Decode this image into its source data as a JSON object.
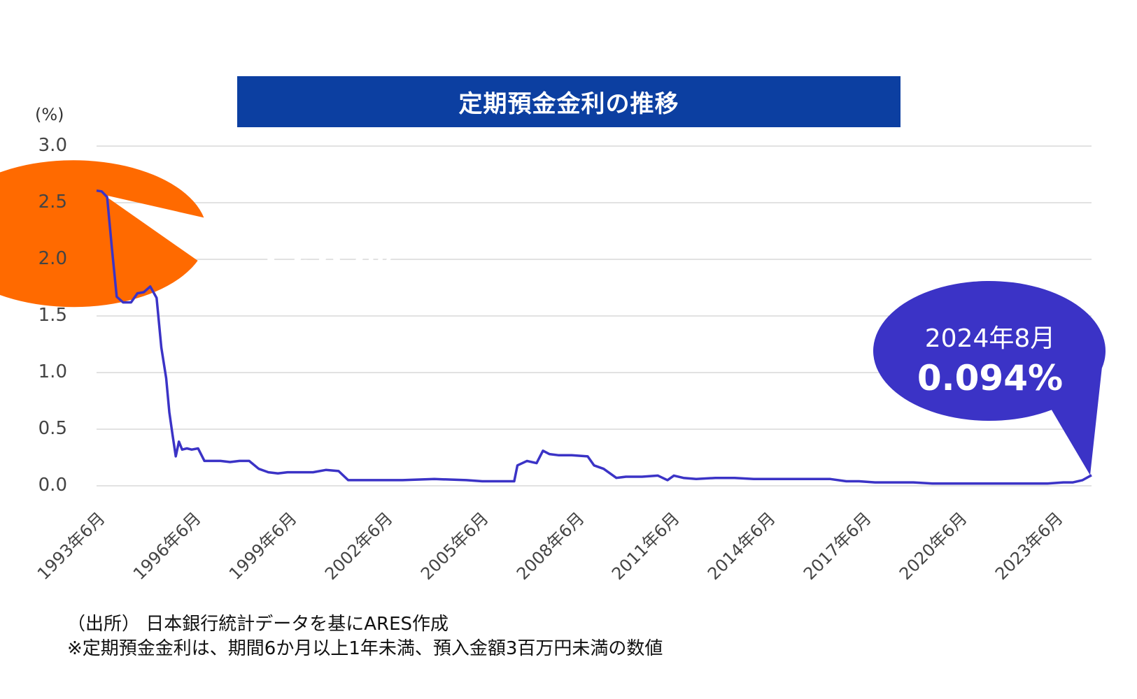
{
  "title": "定期預金金利の推移",
  "unit_label": "(%)",
  "callouts": [
    {
      "label": "1993年",
      "value": "2.607%",
      "color": "#ff6a00"
    },
    {
      "label": "2024年8月",
      "value": "0.094%",
      "color": "#3b33c6"
    }
  ],
  "notes": [
    "（出所） 日本銀行統計データを基にARES作成",
    "※定期預金金利は、期間6か月以上1年未満、預入金額3百万円未満の数値"
  ],
  "colors": {
    "line": "#3b33c6",
    "title_bg": "#0c3fa1",
    "grid": "#d9d9d9"
  },
  "chart_data": {
    "type": "line",
    "title": "定期預金金利の推移",
    "ylabel": "(%)",
    "ylim": [
      0,
      3.0
    ],
    "y_ticks": [
      "3.0",
      "2.5",
      "2.0",
      "1.5",
      "1.0",
      "0.5",
      "0.0"
    ],
    "x_ticks": [
      "1993年6月",
      "1996年6月",
      "1999年6月",
      "2002年6月",
      "2005年6月",
      "2008年6月",
      "2011年6月",
      "2014年6月",
      "2017年6月",
      "2020年6月",
      "2023年6月"
    ],
    "grid": true,
    "series": [
      {
        "x": [
          1993.42,
          1993.58,
          1993.75,
          1993.9,
          1994.05,
          1994.25,
          1994.5,
          1994.7,
          1994.9,
          1995.1,
          1995.3,
          1995.45,
          1995.6,
          1995.7,
          1995.8,
          1995.9,
          1996.0,
          1996.1,
          1996.25,
          1996.4,
          1996.6,
          1996.8,
          1997.0,
          1997.3,
          1997.6,
          1997.9,
          1998.2,
          1998.5,
          1998.8,
          1999.1,
          1999.4,
          1999.8,
          2000.2,
          2000.6,
          2001.0,
          2001.3,
          2001.6,
          2001.8,
          2002.2,
          2003.0,
          2004.0,
          2005.0,
          2005.5,
          2006.0,
          2006.5,
          2006.6,
          2006.9,
          2007.2,
          2007.4,
          2007.6,
          2007.9,
          2008.3,
          2008.8,
          2009.0,
          2009.3,
          2009.7,
          2010.0,
          2010.5,
          2011.0,
          2011.3,
          2011.5,
          2011.8,
          2012.2,
          2012.8,
          2013.4,
          2014.0,
          2014.6,
          2015.2,
          2015.8,
          2016.4,
          2016.9,
          2017.3,
          2017.8,
          2018.4,
          2019.0,
          2019.6,
          2020.2,
          2020.8,
          2021.4,
          2022.0,
          2022.6,
          2023.2,
          2023.7,
          2024.0,
          2024.3,
          2024.58
        ],
        "y": [
          2.607,
          2.6,
          2.55,
          2.1,
          1.67,
          1.62,
          1.62,
          1.7,
          1.71,
          1.76,
          1.66,
          1.22,
          0.95,
          0.65,
          0.45,
          0.26,
          0.39,
          0.32,
          0.33,
          0.32,
          0.33,
          0.22,
          0.22,
          0.22,
          0.21,
          0.22,
          0.22,
          0.15,
          0.12,
          0.11,
          0.12,
          0.12,
          0.12,
          0.14,
          0.13,
          0.05,
          0.05,
          0.05,
          0.05,
          0.05,
          0.06,
          0.05,
          0.04,
          0.04,
          0.04,
          0.18,
          0.22,
          0.2,
          0.31,
          0.28,
          0.27,
          0.27,
          0.26,
          0.18,
          0.15,
          0.07,
          0.08,
          0.08,
          0.09,
          0.05,
          0.09,
          0.07,
          0.06,
          0.07,
          0.07,
          0.06,
          0.06,
          0.06,
          0.06,
          0.06,
          0.04,
          0.04,
          0.03,
          0.03,
          0.03,
          0.02,
          0.02,
          0.02,
          0.02,
          0.02,
          0.02,
          0.02,
          0.03,
          0.03,
          0.05,
          0.094
        ]
      }
    ]
  }
}
